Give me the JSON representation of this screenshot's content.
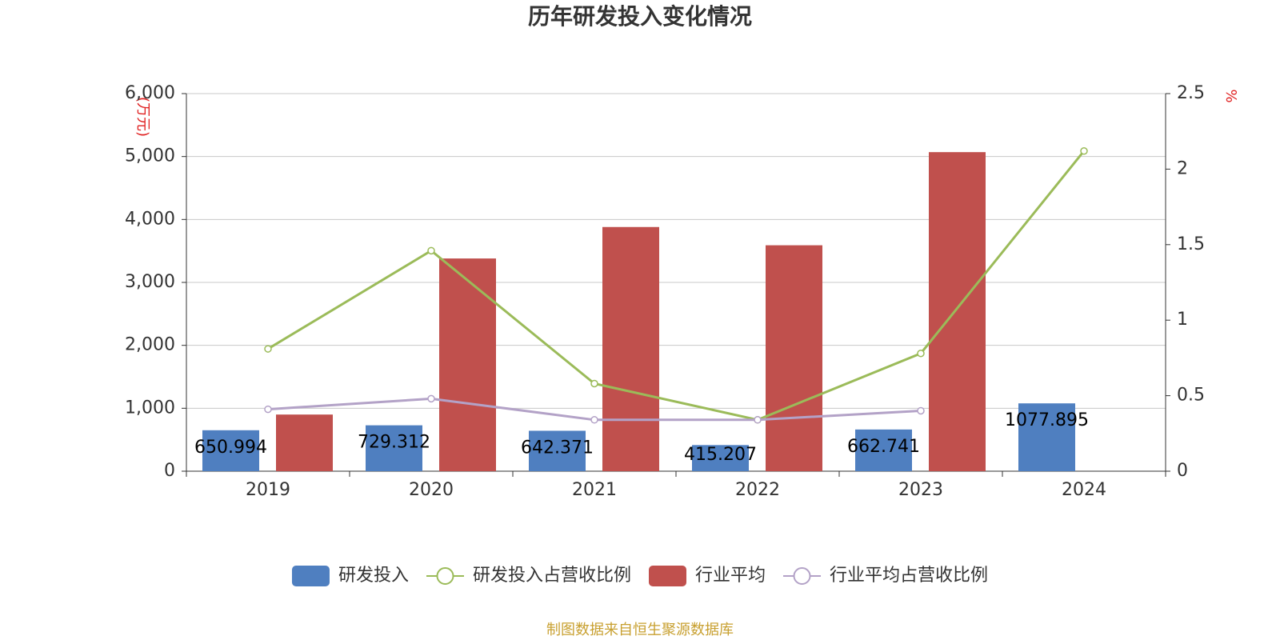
{
  "chart_data": {
    "type": "bar",
    "title": "历年研发投入变化情况",
    "ylabel": "(万元)",
    "y2label": "%",
    "source": "制图数据来自恒生聚源数据库",
    "categories": [
      "2019",
      "2020",
      "2021",
      "2022",
      "2023",
      "2024"
    ],
    "series": [
      {
        "name": "研发投入",
        "type": "bar",
        "color": "#4f7fc0",
        "values": [
          650.994,
          729.312,
          642.371,
          415.207,
          662.741,
          1077.895
        ],
        "show_labels": true
      },
      {
        "name": "研发投入占营收比例",
        "type": "line",
        "axis": "y2",
        "color": "#9bbb59",
        "values": [
          0.81,
          1.46,
          0.58,
          0.34,
          0.78,
          2.12
        ]
      },
      {
        "name": "行业平均",
        "type": "bar",
        "color": "#c0504d",
        "values": [
          900,
          3380,
          3880,
          3590,
          5070,
          null
        ]
      },
      {
        "name": "行业平均占营收比例",
        "type": "line",
        "axis": "y2",
        "color": "#b3a2c7",
        "values": [
          0.41,
          0.48,
          0.34,
          0.34,
          0.4,
          null
        ]
      }
    ],
    "ylim": [
      0,
      6000
    ],
    "yticks": [
      0,
      {
        "value": 1000,
        "label": "1,000"
      },
      {
        "value": 2000,
        "label": "2,000"
      },
      {
        "value": 3000,
        "label": "3,000"
      },
      {
        "value": 4000,
        "label": "4,000"
      },
      {
        "value": 5000,
        "label": "5,000"
      },
      {
        "value": 6000,
        "label": "6,000"
      }
    ],
    "y2lim": [
      0,
      2.5
    ],
    "y2ticks": [
      0,
      0.5,
      1,
      1.5,
      2,
      2.5
    ],
    "grid": true,
    "legend_position": "bottom"
  }
}
